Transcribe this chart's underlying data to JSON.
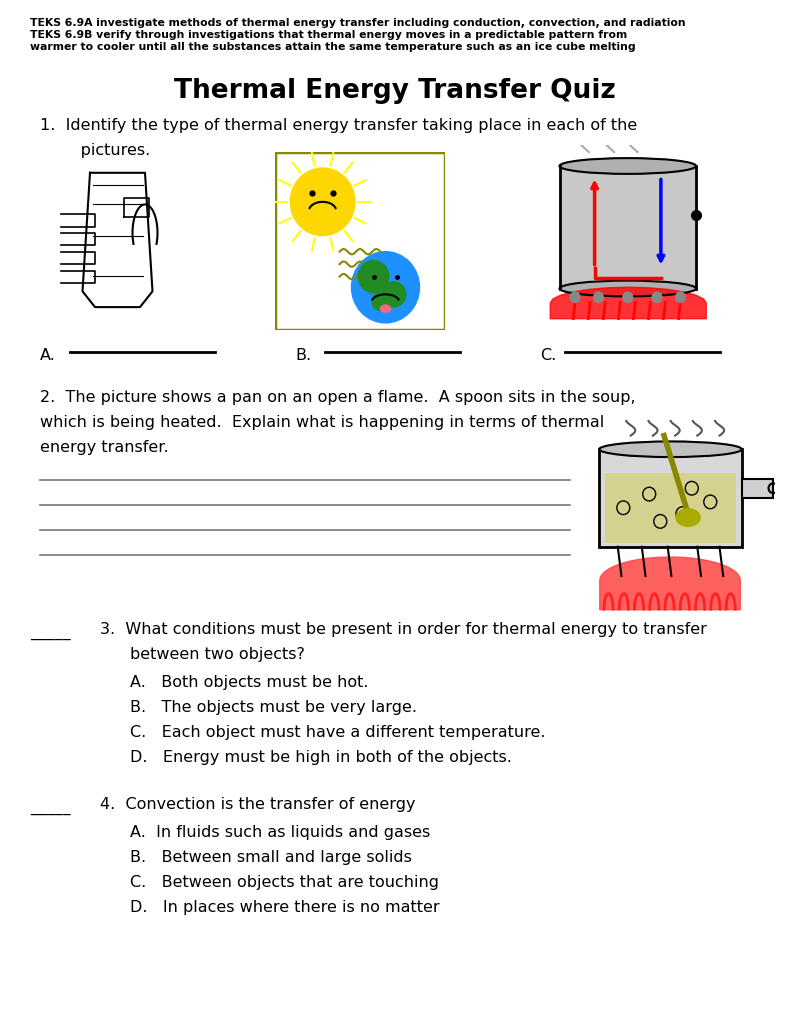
{
  "bg_color": "#ffffff",
  "header_text_line1": "TEKS 6.9A investigate methods of thermal energy transfer including conduction, convection, and radiation",
  "header_text_line2": "TEKS 6.9B verify through investigations that thermal energy moves in a predictable pattern from",
  "header_text_line3": "warmer to cooler until all the substances attain the same temperature such as an ice cube melting",
  "title": "Thermal Energy Transfer Quiz",
  "q1_line1": "1.  Identify the type of thermal energy transfer taking place in each of the",
  "q1_line2": "     pictures.",
  "q1_labels": [
    "A.",
    "B.",
    "C."
  ],
  "q2_line1": "2.  The picture shows a pan on an open a flame.  A spoon sits in the soup,",
  "q2_line2": "which is being heated.  Explain what is happening in terms of thermal",
  "q2_line3": "energy transfer.",
  "q3_blank": "_____",
  "q3_line1": "3.  What conditions must be present in order for thermal energy to transfer",
  "q3_line2": "between two objects?",
  "q3_opts": [
    "A.   Both objects must be hot.",
    "B.   The objects must be very large.",
    "C.   Each object must have a different temperature.",
    "D.   Energy must be high in both of the objects."
  ],
  "q4_blank": "_____",
  "q4_line1": "4.  Convection is the transfer of energy",
  "q4_opts": [
    "A.  In fluids such as liquids and gases",
    "B.   Between small and large solids",
    "C.   Between objects that are touching",
    "D.   In places where there is no matter"
  ],
  "font_size_header": 7.8,
  "font_size_title": 19,
  "font_size_body": 11.5,
  "text_color": "#000000",
  "line_color": "#777777"
}
